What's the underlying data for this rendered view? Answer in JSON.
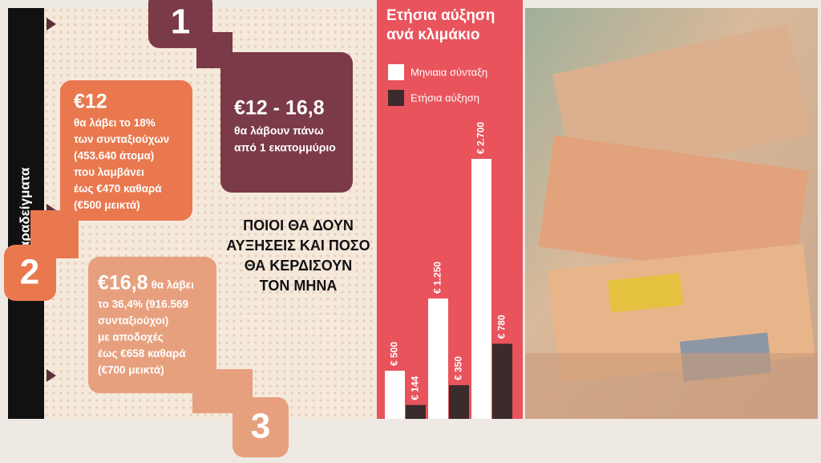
{
  "sidebar_label": "Παραδείγματα",
  "headline": [
    "ΠΟΙΟΙ ΘΑ ΔΟΥΝ",
    "ΑΥΞΗΣΕΙΣ ΚΑΙ ΠΟΣΟ",
    "ΘΑ ΚΕΡΔΙΣΟΥΝ",
    "ΤΟΝ ΜΗΝΑ"
  ],
  "examples": [
    {
      "number": "1",
      "amount": "€12 - 16,8",
      "lines": [
        "θα λάβουν πάνω",
        "από 1 εκατομμύριο"
      ]
    },
    {
      "number": "2",
      "amount": "€12",
      "lines": [
        "θα λάβει το 18%",
        "των συνταξιούχων",
        "(453.640 άτομα)",
        "που λαμβάνει",
        "έως €470 καθαρά",
        "(€500 μεικτά)"
      ]
    },
    {
      "number": "3",
      "amount": "€16,8",
      "lines": [
        "θα λάβει",
        "το 36,4% (916.569",
        "συνταξιούχοι)",
        "με αποδοχές",
        "έως €658 καθαρά",
        "(€700 μεικτά)"
      ]
    }
  ],
  "chart_data": {
    "type": "bar",
    "title": "Ετήσια αύξηση ανά κλιμάκιο",
    "categories": [
      null,
      null,
      null
    ],
    "series": [
      {
        "name": "Μηνιαια σύνταξη",
        "color": "#ffffff",
        "values": [
          500,
          1250,
          2700
        ],
        "value_labels": [
          "€ 500",
          "€ 1.250",
          "€ 2.700"
        ]
      },
      {
        "name": "Ετήσια αύξηση",
        "color": "#3b2b2c",
        "values": [
          144,
          350,
          780
        ],
        "value_labels": [
          "€ 144",
          "€ 350",
          "€ 780"
        ]
      }
    ]
  }
}
